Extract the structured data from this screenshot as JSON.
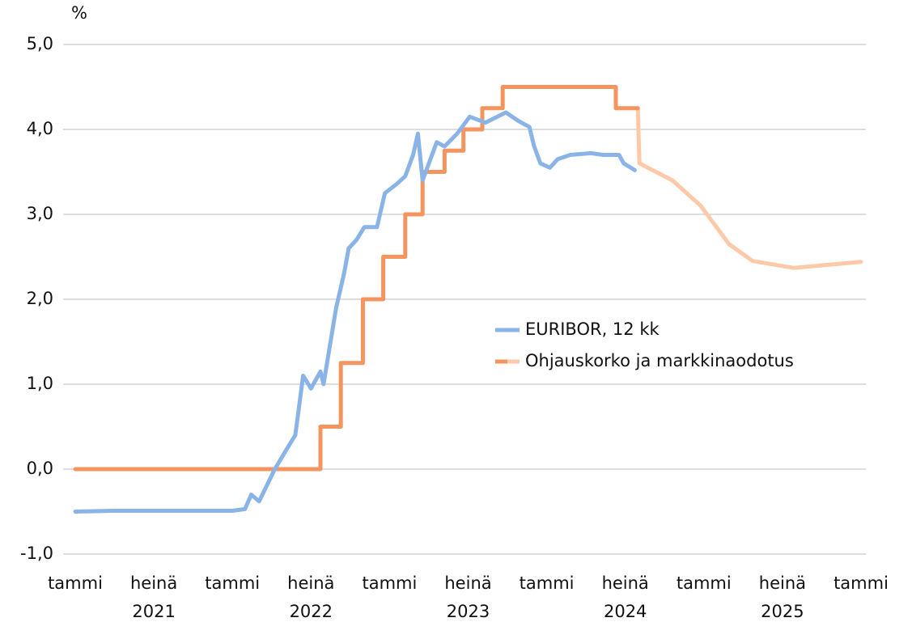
{
  "chart_data": {
    "type": "line",
    "y_unit_label": "%",
    "xlim": [
      2021.0,
      2026.0
    ],
    "xticks": [
      {
        "value": 2021.0,
        "label": "tammi"
      },
      {
        "value": 2021.5,
        "label": "heinä"
      },
      {
        "value": 2022.0,
        "label": "tammi"
      },
      {
        "value": 2022.5,
        "label": "heinä"
      },
      {
        "value": 2023.0,
        "label": "tammi"
      },
      {
        "value": 2023.5,
        "label": "heinä"
      },
      {
        "value": 2024.0,
        "label": "tammi"
      },
      {
        "value": 2024.5,
        "label": "heinä"
      },
      {
        "value": 2025.0,
        "label": "tammi"
      },
      {
        "value": 2025.5,
        "label": "heinä"
      },
      {
        "value": 2026.0,
        "label": "tammi"
      }
    ],
    "year_labels": [
      "2021",
      "2022",
      "2023",
      "2024",
      "2025"
    ],
    "ylim": [
      -1.0,
      5.0
    ],
    "yticks": [
      {
        "value": -1,
        "label": "-1,0"
      },
      {
        "value": 0,
        "label": "0,0"
      },
      {
        "value": 1,
        "label": "1,0"
      },
      {
        "value": 2,
        "label": "2,0"
      },
      {
        "value": 3,
        "label": "3,0"
      },
      {
        "value": 4,
        "label": "4,0"
      },
      {
        "value": 5,
        "label": "5,0"
      }
    ],
    "grid": true,
    "series": [
      {
        "name": "EURIBOR, 12 kk",
        "color": "#8ab4e8",
        "x": [
          2021.0,
          2021.25,
          2021.5,
          2021.75,
          2022.0,
          2022.08,
          2022.12,
          2022.17,
          2022.27,
          2022.35,
          2022.4,
          2022.45,
          2022.5,
          2022.56,
          2022.58,
          2022.66,
          2022.71,
          2022.74,
          2022.79,
          2022.84,
          2022.92,
          2022.97,
          2023.04,
          2023.1,
          2023.15,
          2023.18,
          2023.21,
          2023.25,
          2023.3,
          2023.35,
          2023.43,
          2023.51,
          2023.61,
          2023.74,
          2023.82,
          2023.89,
          2023.92,
          2023.96,
          2024.02,
          2024.07,
          2024.15,
          2024.28,
          2024.36,
          2024.46,
          2024.49,
          2024.56
        ],
        "values": [
          -0.5,
          -0.49,
          -0.49,
          -0.49,
          -0.49,
          -0.47,
          -0.3,
          -0.38,
          0.0,
          0.25,
          0.4,
          1.1,
          0.95,
          1.15,
          1.0,
          1.9,
          2.3,
          2.6,
          2.7,
          2.85,
          2.85,
          3.25,
          3.35,
          3.45,
          3.7,
          3.95,
          3.4,
          3.6,
          3.85,
          3.8,
          3.95,
          4.15,
          4.08,
          4.2,
          4.1,
          4.03,
          3.8,
          3.6,
          3.55,
          3.65,
          3.7,
          3.72,
          3.7,
          3.7,
          3.6,
          3.52
        ]
      },
      {
        "name": "Ohjauskorko ja markkinaodotus",
        "color": "#f4955f",
        "x": [
          2021.0,
          2022.56,
          2022.56,
          2022.69,
          2022.69,
          2022.83,
          2022.83,
          2022.96,
          2022.96,
          2023.1,
          2023.1,
          2023.21,
          2023.21,
          2023.35,
          2023.35,
          2023.47,
          2023.47,
          2023.59,
          2023.59,
          2023.72,
          2023.72,
          2024.44,
          2024.44,
          2024.58
        ],
        "values": [
          0,
          0,
          0.5,
          0.5,
          1.25,
          1.25,
          2.0,
          2.0,
          2.5,
          2.5,
          3.0,
          3.0,
          3.5,
          3.5,
          3.75,
          3.75,
          4.0,
          4.0,
          4.25,
          4.25,
          4.5,
          4.5,
          4.25,
          4.25
        ]
      },
      {
        "color": "#fdcaa9",
        "x": [
          2024.58,
          2024.59,
          2024.8,
          2024.98,
          2025.16,
          2025.31,
          2025.57,
          2025.82,
          2026.0
        ],
        "values": [
          4.25,
          3.6,
          3.4,
          3.1,
          2.65,
          2.45,
          2.37,
          2.41,
          2.44
        ]
      }
    ]
  }
}
